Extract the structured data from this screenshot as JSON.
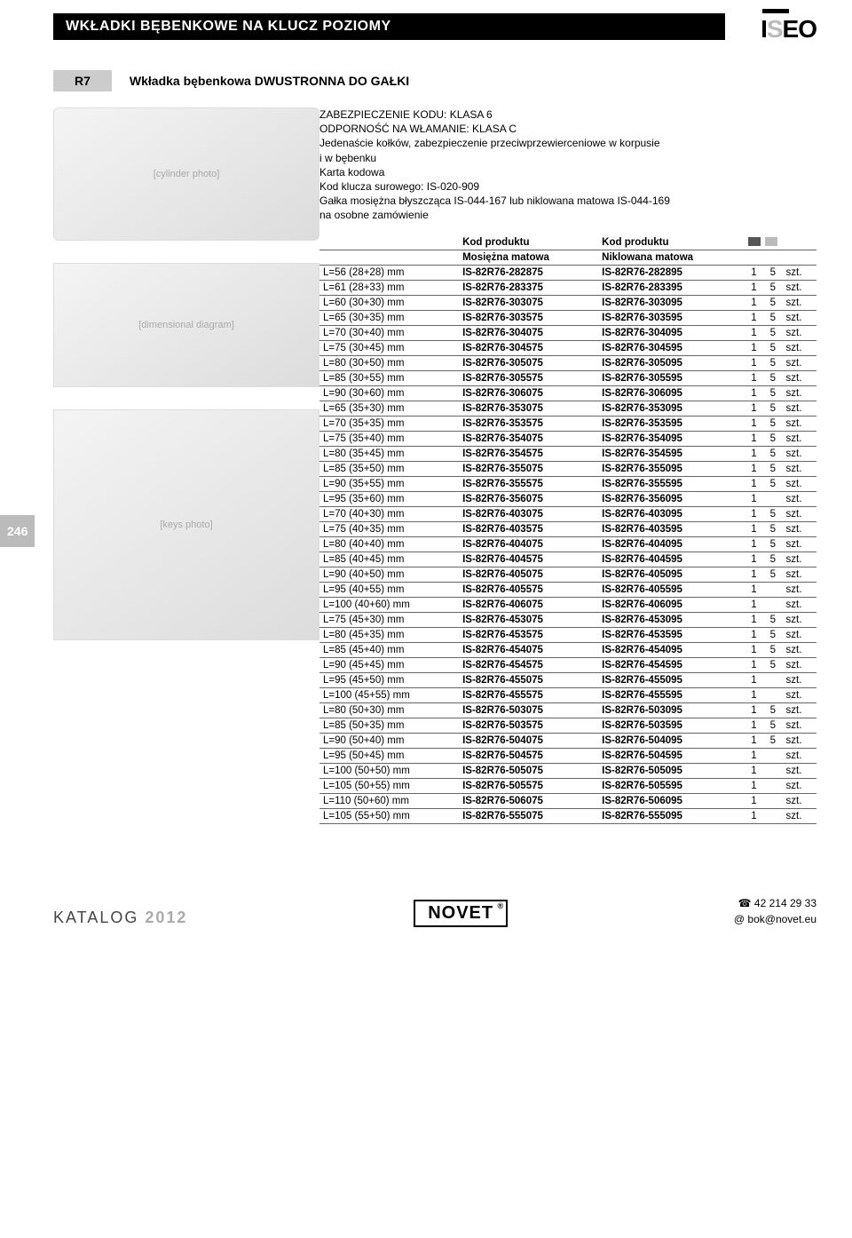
{
  "header": {
    "title": "WKŁADKI BĘBENKOWE NA KLUCZ POZIOMY",
    "logo": "ISEO"
  },
  "sub": {
    "tab": "R7",
    "title": "Wkładka bębenkowa DWUSTRONNA DO GAŁKI"
  },
  "desc_lines": [
    "ZABEZPIECZENIE KODU: KLASA 6",
    "ODPORNOŚĆ NA WŁAMANIE: KLASA C",
    "Jedenaście kołków, zabezpieczenie przeciwprzewierceniowe w korpusie",
    "i w bębenku",
    "Karta kodowa",
    "Kod klucza surowego: IS-020-909",
    "Gałka mosiężna błyszcząca IS-044-167 lub niklowana matowa IS-044-169",
    "na osobne zamówienie"
  ],
  "table": {
    "head1": [
      "",
      "Kod produktu",
      "Kod produktu",
      "",
      ""
    ],
    "head2": [
      "",
      "Mosiężna matowa",
      "Niklowana matowa",
      "",
      ""
    ],
    "col5_label": "szt.",
    "rows": [
      [
        "L=56 (28+28) mm",
        "IS-82R76-282875",
        "IS-82R76-282895",
        "1",
        "5"
      ],
      [
        "L=61 (28+33) mm",
        "IS-82R76-283375",
        "IS-82R76-283395",
        "1",
        "5"
      ],
      [
        "L=60 (30+30) mm",
        "IS-82R76-303075",
        "IS-82R76-303095",
        "1",
        "5"
      ],
      [
        "L=65 (30+35) mm",
        "IS-82R76-303575",
        "IS-82R76-303595",
        "1",
        "5"
      ],
      [
        "L=70 (30+40) mm",
        "IS-82R76-304075",
        "IS-82R76-304095",
        "1",
        "5"
      ],
      [
        "L=75 (30+45) mm",
        "IS-82R76-304575",
        "IS-82R76-304595",
        "1",
        "5"
      ],
      [
        "L=80 (30+50) mm",
        "IS-82R76-305075",
        "IS-82R76-305095",
        "1",
        "5"
      ],
      [
        "L=85 (30+55) mm",
        "IS-82R76-305575",
        "IS-82R76-305595",
        "1",
        "5"
      ],
      [
        "L=90 (30+60) mm",
        "IS-82R76-306075",
        "IS-82R76-306095",
        "1",
        "5"
      ],
      [
        "L=65 (35+30) mm",
        "IS-82R76-353075",
        "IS-82R76-353095",
        "1",
        "5"
      ],
      [
        "L=70 (35+35) mm",
        "IS-82R76-353575",
        "IS-82R76-353595",
        "1",
        "5"
      ],
      [
        "L=75 (35+40) mm",
        "IS-82R76-354075",
        "IS-82R76-354095",
        "1",
        "5"
      ],
      [
        "L=80 (35+45) mm",
        "IS-82R76-354575",
        "IS-82R76-354595",
        "1",
        "5"
      ],
      [
        "L=85 (35+50) mm",
        "IS-82R76-355075",
        "IS-82R76-355095",
        "1",
        "5"
      ],
      [
        "L=90 (35+55) mm",
        "IS-82R76-355575",
        "IS-82R76-355595",
        "1",
        "5"
      ],
      [
        "L=95 (35+60) mm",
        "IS-82R76-356075",
        "IS-82R76-356095",
        "1",
        ""
      ],
      [
        "L=70 (40+30) mm",
        "IS-82R76-403075",
        "IS-82R76-403095",
        "1",
        "5"
      ],
      [
        "L=75 (40+35) mm",
        "IS-82R76-403575",
        "IS-82R76-403595",
        "1",
        "5"
      ],
      [
        "L=80 (40+40) mm",
        "IS-82R76-404075",
        "IS-82R76-404095",
        "1",
        "5"
      ],
      [
        "L=85 (40+45) mm",
        "IS-82R76-404575",
        "IS-82R76-404595",
        "1",
        "5"
      ],
      [
        "L=90 (40+50) mm",
        "IS-82R76-405075",
        "IS-82R76-405095",
        "1",
        "5"
      ],
      [
        "L=95 (40+55) mm",
        "IS-82R76-405575",
        "IS-82R76-405595",
        "1",
        ""
      ],
      [
        "L=100 (40+60) mm",
        "IS-82R76-406075",
        "IS-82R76-406095",
        "1",
        ""
      ],
      [
        "L=75 (45+30) mm",
        "IS-82R76-453075",
        "IS-82R76-453095",
        "1",
        "5"
      ],
      [
        "L=80 (45+35) mm",
        "IS-82R76-453575",
        "IS-82R76-453595",
        "1",
        "5"
      ],
      [
        "L=85 (45+40) mm",
        "IS-82R76-454075",
        "IS-82R76-454095",
        "1",
        "5"
      ],
      [
        "L=90 (45+45) mm",
        "IS-82R76-454575",
        "IS-82R76-454595",
        "1",
        "5"
      ],
      [
        "L=95 (45+50) mm",
        "IS-82R76-455075",
        "IS-82R76-455095",
        "1",
        ""
      ],
      [
        "L=100 (45+55) mm",
        "IS-82R76-455575",
        "IS-82R76-455595",
        "1",
        ""
      ],
      [
        "L=80 (50+30) mm",
        "IS-82R76-503075",
        "IS-82R76-503095",
        "1",
        "5"
      ],
      [
        "L=85 (50+35) mm",
        "IS-82R76-503575",
        "IS-82R76-503595",
        "1",
        "5"
      ],
      [
        "L=90 (50+40) mm",
        "IS-82R76-504075",
        "IS-82R76-504095",
        "1",
        "5"
      ],
      [
        "L=95 (50+45) mm",
        "IS-82R76-504575",
        "IS-82R76-504595",
        "1",
        ""
      ],
      [
        "L=100 (50+50) mm",
        "IS-82R76-505075",
        "IS-82R76-505095",
        "1",
        ""
      ],
      [
        "L=105 (50+55) mm",
        "IS-82R76-505575",
        "IS-82R76-505595",
        "1",
        ""
      ],
      [
        "L=110 (50+60) mm",
        "IS-82R76-506075",
        "IS-82R76-506095",
        "1",
        ""
      ],
      [
        "L=105 (55+50) mm",
        "IS-82R76-555075",
        "IS-82R76-555095",
        "1",
        ""
      ]
    ]
  },
  "page_number": "246",
  "footer": {
    "katalog_label": "KATALOG",
    "katalog_year": "2012",
    "brand": "NOVET",
    "phone": "42 214 29 33",
    "email": "bok@novet.eu"
  }
}
